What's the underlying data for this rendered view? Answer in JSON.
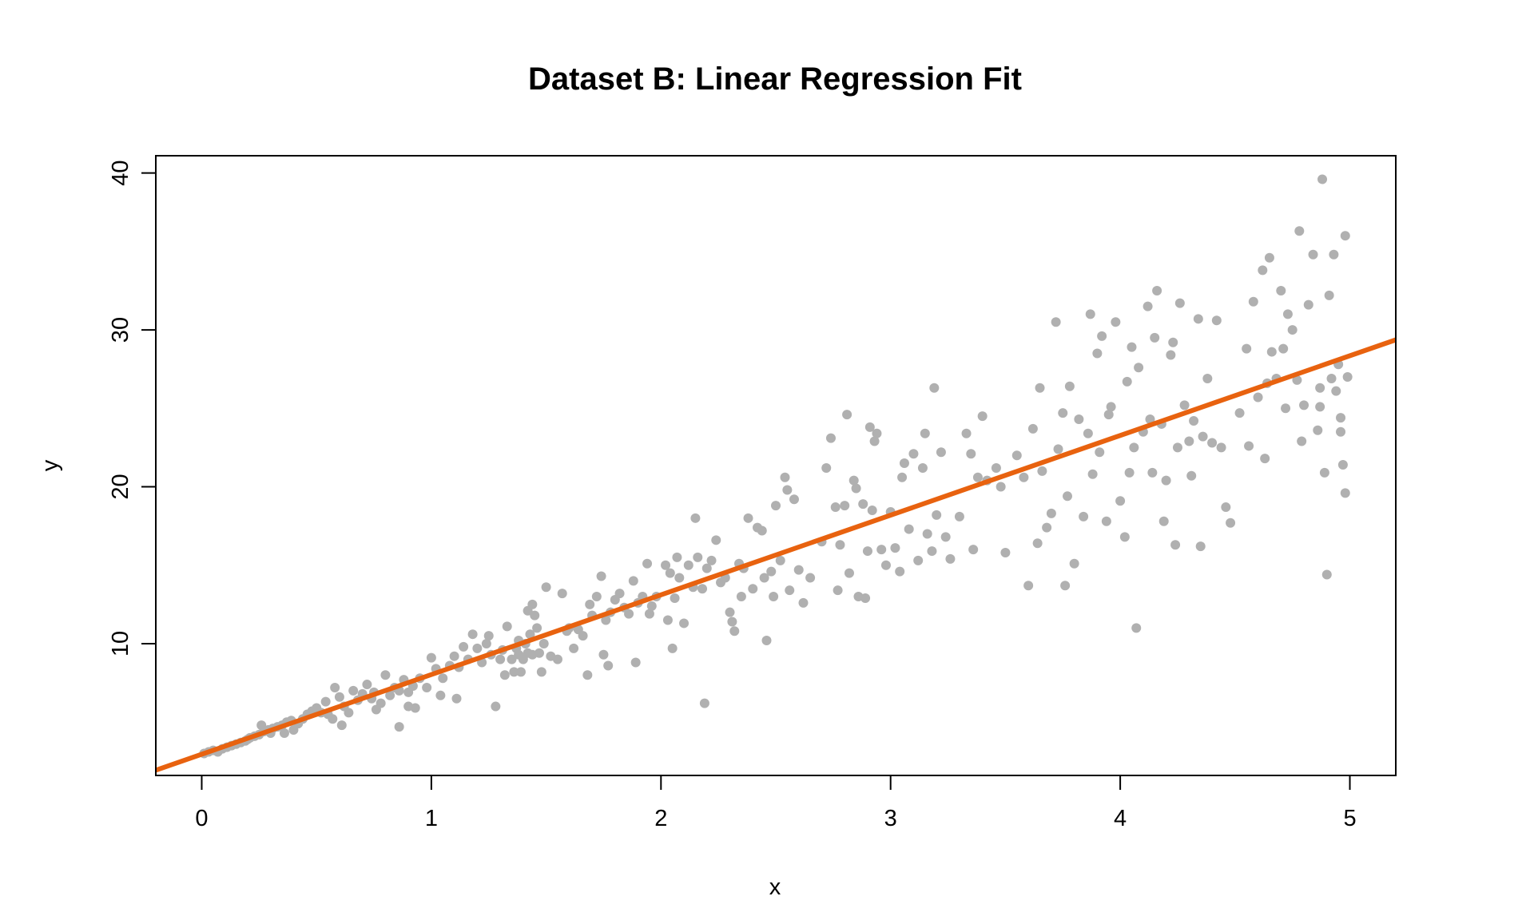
{
  "chart_data": {
    "type": "scatter",
    "title": "Dataset B: Linear Regression Fit",
    "xlabel": "x",
    "ylabel": "y",
    "xlim": [
      -0.2,
      5.2
    ],
    "ylim": [
      1.6,
      41.1
    ],
    "xticks": [
      0,
      1,
      2,
      3,
      4,
      5
    ],
    "yticks": [
      10,
      20,
      30,
      40
    ],
    "grid": false,
    "legend": "none",
    "colors": {
      "points": "#b0b0b0",
      "fit_line": "#e8620f"
    },
    "fit_line": {
      "intercept": 2.95,
      "slope": 5.08
    },
    "points": [
      [
        0.01,
        3.0
      ],
      [
        0.03,
        3.1
      ],
      [
        0.05,
        3.2
      ],
      [
        0.07,
        3.1
      ],
      [
        0.09,
        3.3
      ],
      [
        0.11,
        3.4
      ],
      [
        0.13,
        3.5
      ],
      [
        0.15,
        3.6
      ],
      [
        0.17,
        3.7
      ],
      [
        0.19,
        3.8
      ],
      [
        0.21,
        4.0
      ],
      [
        0.23,
        4.1
      ],
      [
        0.25,
        4.2
      ],
      [
        0.27,
        4.4
      ],
      [
        0.29,
        4.5
      ],
      [
        0.31,
        4.6
      ],
      [
        0.33,
        4.7
      ],
      [
        0.35,
        4.8
      ],
      [
        0.37,
        5.0
      ],
      [
        0.39,
        5.1
      ],
      [
        0.2,
        3.9
      ],
      [
        0.26,
        4.8
      ],
      [
        0.3,
        4.3
      ],
      [
        0.36,
        4.3
      ],
      [
        0.4,
        4.5
      ],
      [
        0.42,
        4.9
      ],
      [
        0.44,
        5.2
      ],
      [
        0.46,
        5.5
      ],
      [
        0.48,
        5.7
      ],
      [
        0.5,
        5.9
      ],
      [
        0.52,
        5.6
      ],
      [
        0.54,
        6.3
      ],
      [
        0.55,
        5.5
      ],
      [
        0.57,
        5.2
      ],
      [
        0.58,
        7.2
      ],
      [
        0.6,
        6.6
      ],
      [
        0.61,
        4.8
      ],
      [
        0.62,
        6.0
      ],
      [
        0.64,
        5.6
      ],
      [
        0.66,
        7.0
      ],
      [
        0.68,
        6.4
      ],
      [
        0.7,
        6.8
      ],
      [
        0.72,
        7.4
      ],
      [
        0.74,
        6.5
      ],
      [
        0.75,
        6.9
      ],
      [
        0.76,
        5.8
      ],
      [
        0.78,
        6.2
      ],
      [
        0.8,
        8.0
      ],
      [
        0.82,
        6.7
      ],
      [
        0.84,
        7.2
      ],
      [
        0.86,
        7.0
      ],
      [
        0.86,
        4.7
      ],
      [
        0.88,
        7.7
      ],
      [
        0.9,
        6.0
      ],
      [
        0.9,
        6.9
      ],
      [
        0.92,
        7.3
      ],
      [
        0.93,
        5.9
      ],
      [
        0.95,
        7.8
      ],
      [
        0.98,
        7.2
      ],
      [
        1.0,
        9.1
      ],
      [
        1.02,
        8.4
      ],
      [
        1.04,
        6.7
      ],
      [
        1.05,
        7.8
      ],
      [
        1.08,
        8.6
      ],
      [
        1.1,
        9.2
      ],
      [
        1.11,
        6.5
      ],
      [
        1.12,
        8.5
      ],
      [
        1.14,
        9.8
      ],
      [
        1.16,
        9.0
      ],
      [
        1.18,
        10.6
      ],
      [
        1.2,
        9.7
      ],
      [
        1.22,
        8.8
      ],
      [
        1.24,
        10.0
      ],
      [
        1.25,
        10.5
      ],
      [
        1.26,
        9.3
      ],
      [
        1.28,
        6.0
      ],
      [
        1.3,
        9.0
      ],
      [
        1.31,
        9.6
      ],
      [
        1.32,
        8.0
      ],
      [
        1.33,
        11.1
      ],
      [
        1.35,
        9.0
      ],
      [
        1.36,
        8.2
      ],
      [
        1.37,
        9.7
      ],
      [
        1.38,
        9.3
      ],
      [
        1.38,
        10.2
      ],
      [
        1.39,
        8.2
      ],
      [
        1.4,
        9.0
      ],
      [
        1.41,
        10.0
      ],
      [
        1.42,
        9.4
      ],
      [
        1.42,
        12.1
      ],
      [
        1.43,
        10.6
      ],
      [
        1.44,
        12.5
      ],
      [
        1.44,
        9.3
      ],
      [
        1.45,
        11.8
      ],
      [
        1.46,
        11.0
      ],
      [
        1.47,
        9.4
      ],
      [
        1.48,
        8.2
      ],
      [
        1.49,
        10.0
      ],
      [
        1.5,
        13.6
      ],
      [
        1.52,
        9.2
      ],
      [
        1.55,
        9.0
      ],
      [
        1.57,
        13.2
      ],
      [
        1.59,
        10.8
      ],
      [
        1.6,
        11.0
      ],
      [
        1.62,
        9.7
      ],
      [
        1.64,
        10.9
      ],
      [
        1.66,
        10.5
      ],
      [
        1.68,
        8.0
      ],
      [
        1.69,
        12.5
      ],
      [
        1.7,
        11.8
      ],
      [
        1.72,
        13.0
      ],
      [
        1.74,
        14.3
      ],
      [
        1.75,
        9.3
      ],
      [
        1.76,
        11.5
      ],
      [
        1.77,
        8.6
      ],
      [
        1.78,
        12.0
      ],
      [
        1.8,
        12.8
      ],
      [
        1.82,
        13.2
      ],
      [
        1.84,
        12.3
      ],
      [
        1.86,
        11.9
      ],
      [
        1.88,
        14.0
      ],
      [
        1.89,
        8.8
      ],
      [
        1.9,
        12.6
      ],
      [
        1.92,
        13.0
      ],
      [
        1.94,
        15.1
      ],
      [
        1.95,
        11.9
      ],
      [
        1.96,
        12.4
      ],
      [
        1.98,
        13.0
      ],
      [
        2.02,
        15.0
      ],
      [
        2.03,
        11.5
      ],
      [
        2.04,
        14.5
      ],
      [
        2.05,
        9.7
      ],
      [
        2.06,
        12.9
      ],
      [
        2.07,
        15.5
      ],
      [
        2.08,
        14.2
      ],
      [
        2.1,
        11.3
      ],
      [
        2.12,
        15.0
      ],
      [
        2.14,
        13.6
      ],
      [
        2.15,
        18.0
      ],
      [
        2.16,
        15.5
      ],
      [
        2.18,
        13.5
      ],
      [
        2.19,
        6.2
      ],
      [
        2.2,
        14.8
      ],
      [
        2.22,
        15.3
      ],
      [
        2.24,
        16.6
      ],
      [
        2.26,
        13.9
      ],
      [
        2.28,
        14.2
      ],
      [
        2.3,
        12.0
      ],
      [
        2.31,
        11.4
      ],
      [
        2.32,
        10.8
      ],
      [
        2.34,
        15.1
      ],
      [
        2.35,
        13.0
      ],
      [
        2.36,
        14.8
      ],
      [
        2.38,
        18.0
      ],
      [
        2.4,
        13.5
      ],
      [
        2.42,
        17.4
      ],
      [
        2.44,
        17.2
      ],
      [
        2.45,
        14.2
      ],
      [
        2.46,
        10.2
      ],
      [
        2.48,
        14.6
      ],
      [
        2.49,
        13.0
      ],
      [
        2.5,
        18.8
      ],
      [
        2.52,
        15.3
      ],
      [
        2.54,
        20.6
      ],
      [
        2.55,
        19.8
      ],
      [
        2.56,
        13.4
      ],
      [
        2.58,
        19.2
      ],
      [
        2.6,
        14.7
      ],
      [
        2.62,
        12.6
      ],
      [
        2.65,
        14.2
      ],
      [
        2.7,
        16.5
      ],
      [
        2.72,
        21.2
      ],
      [
        2.74,
        23.1
      ],
      [
        2.76,
        18.7
      ],
      [
        2.77,
        13.4
      ],
      [
        2.78,
        16.3
      ],
      [
        2.8,
        18.8
      ],
      [
        2.81,
        24.6
      ],
      [
        2.82,
        14.5
      ],
      [
        2.84,
        20.4
      ],
      [
        2.85,
        19.9
      ],
      [
        2.86,
        13.0
      ],
      [
        2.88,
        18.9
      ],
      [
        2.89,
        12.9
      ],
      [
        2.9,
        15.9
      ],
      [
        2.91,
        23.8
      ],
      [
        2.92,
        18.5
      ],
      [
        2.93,
        22.9
      ],
      [
        2.94,
        23.4
      ],
      [
        2.96,
        16.0
      ],
      [
        2.98,
        15.0
      ],
      [
        3.0,
        18.4
      ],
      [
        3.02,
        16.1
      ],
      [
        3.04,
        14.6
      ],
      [
        3.05,
        20.6
      ],
      [
        3.06,
        21.5
      ],
      [
        3.08,
        17.3
      ],
      [
        3.1,
        22.1
      ],
      [
        3.12,
        15.3
      ],
      [
        3.14,
        21.2
      ],
      [
        3.15,
        23.4
      ],
      [
        3.16,
        17.0
      ],
      [
        3.18,
        15.9
      ],
      [
        3.19,
        26.3
      ],
      [
        3.2,
        18.2
      ],
      [
        3.22,
        22.2
      ],
      [
        3.24,
        16.8
      ],
      [
        3.26,
        15.4
      ],
      [
        3.3,
        18.1
      ],
      [
        3.33,
        23.4
      ],
      [
        3.35,
        22.1
      ],
      [
        3.36,
        16.0
      ],
      [
        3.38,
        20.6
      ],
      [
        3.4,
        24.5
      ],
      [
        3.42,
        20.4
      ],
      [
        3.46,
        21.2
      ],
      [
        3.48,
        20.0
      ],
      [
        3.5,
        15.8
      ],
      [
        3.55,
        22.0
      ],
      [
        3.58,
        20.6
      ],
      [
        3.6,
        13.7
      ],
      [
        3.62,
        23.7
      ],
      [
        3.64,
        16.4
      ],
      [
        3.65,
        26.3
      ],
      [
        3.66,
        21.0
      ],
      [
        3.68,
        17.4
      ],
      [
        3.7,
        18.3
      ],
      [
        3.72,
        30.5
      ],
      [
        3.73,
        22.4
      ],
      [
        3.75,
        24.7
      ],
      [
        3.76,
        13.7
      ],
      [
        3.77,
        19.4
      ],
      [
        3.78,
        26.4
      ],
      [
        3.8,
        15.1
      ],
      [
        3.82,
        24.3
      ],
      [
        3.84,
        18.1
      ],
      [
        3.86,
        23.4
      ],
      [
        3.87,
        31.0
      ],
      [
        3.88,
        20.8
      ],
      [
        3.9,
        28.5
      ],
      [
        3.91,
        22.2
      ],
      [
        3.92,
        29.6
      ],
      [
        3.94,
        17.8
      ],
      [
        3.95,
        24.6
      ],
      [
        3.96,
        25.1
      ],
      [
        3.98,
        30.5
      ],
      [
        4.0,
        19.1
      ],
      [
        4.02,
        16.8
      ],
      [
        4.03,
        26.7
      ],
      [
        4.04,
        20.9
      ],
      [
        4.05,
        28.9
      ],
      [
        4.06,
        22.5
      ],
      [
        4.07,
        11.0
      ],
      [
        4.08,
        27.6
      ],
      [
        4.1,
        23.5
      ],
      [
        4.12,
        31.5
      ],
      [
        4.13,
        24.3
      ],
      [
        4.14,
        20.9
      ],
      [
        4.15,
        29.5
      ],
      [
        4.16,
        32.5
      ],
      [
        4.18,
        24.0
      ],
      [
        4.19,
        17.8
      ],
      [
        4.2,
        20.4
      ],
      [
        4.22,
        28.4
      ],
      [
        4.23,
        29.2
      ],
      [
        4.24,
        16.3
      ],
      [
        4.25,
        22.5
      ],
      [
        4.26,
        31.7
      ],
      [
        4.28,
        25.2
      ],
      [
        4.3,
        22.9
      ],
      [
        4.31,
        20.7
      ],
      [
        4.32,
        24.2
      ],
      [
        4.34,
        30.7
      ],
      [
        4.35,
        16.2
      ],
      [
        4.36,
        23.2
      ],
      [
        4.38,
        26.9
      ],
      [
        4.4,
        22.8
      ],
      [
        4.42,
        30.6
      ],
      [
        4.44,
        22.5
      ],
      [
        4.46,
        18.7
      ],
      [
        4.48,
        17.7
      ],
      [
        4.52,
        24.7
      ],
      [
        4.55,
        28.8
      ],
      [
        4.56,
        22.6
      ],
      [
        4.58,
        31.8
      ],
      [
        4.6,
        25.7
      ],
      [
        4.62,
        33.8
      ],
      [
        4.63,
        21.8
      ],
      [
        4.64,
        26.6
      ],
      [
        4.65,
        34.6
      ],
      [
        4.66,
        28.6
      ],
      [
        4.68,
        26.9
      ],
      [
        4.7,
        32.5
      ],
      [
        4.71,
        28.8
      ],
      [
        4.72,
        25.0
      ],
      [
        4.73,
        31.0
      ],
      [
        4.75,
        30.0
      ],
      [
        4.77,
        26.8
      ],
      [
        4.78,
        36.3
      ],
      [
        4.79,
        22.9
      ],
      [
        4.8,
        25.2
      ],
      [
        4.82,
        31.6
      ],
      [
        4.84,
        34.8
      ],
      [
        4.86,
        23.6
      ],
      [
        4.87,
        25.1
      ],
      [
        4.88,
        39.6
      ],
      [
        4.89,
        20.9
      ],
      [
        4.9,
        14.4
      ],
      [
        4.91,
        32.2
      ],
      [
        4.92,
        26.9
      ],
      [
        4.93,
        34.8
      ],
      [
        4.94,
        26.1
      ],
      [
        4.95,
        27.8
      ],
      [
        4.96,
        23.5
      ],
      [
        4.97,
        21.4
      ],
      [
        4.98,
        19.6
      ],
      [
        4.98,
        36.0
      ],
      [
        4.99,
        27.0
      ],
      [
        4.96,
        24.4
      ],
      [
        4.87,
        26.3
      ]
    ]
  }
}
